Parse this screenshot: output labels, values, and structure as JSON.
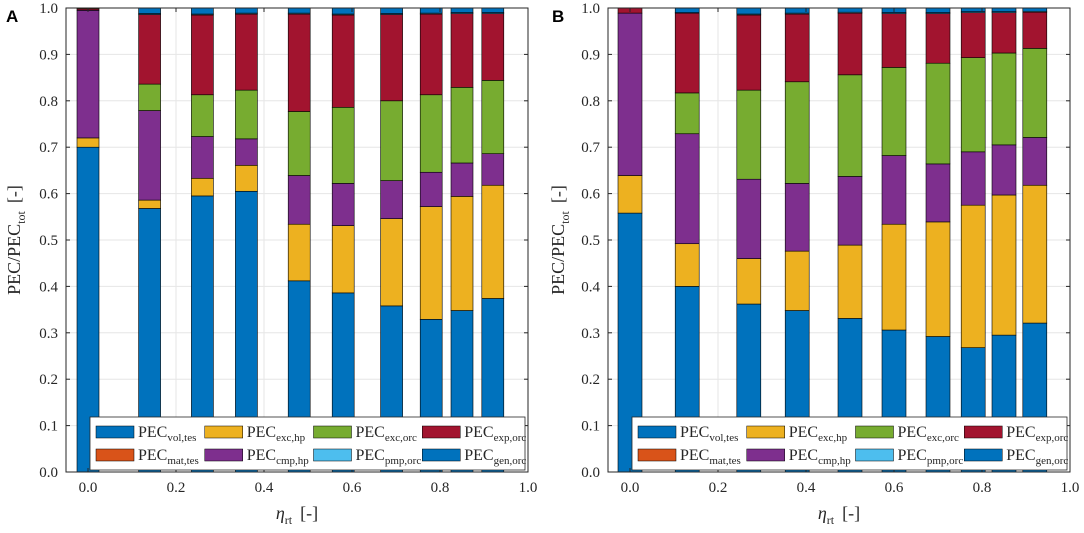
{
  "colors": {
    "vol_tes": "#0072BD",
    "exc_hp": "#EDB120",
    "exc_orc": "#77AC30",
    "exp_orc": "#A2142F",
    "mat_tes": "#D95319",
    "cmp_hp": "#7E2F8E",
    "pmp_orc": "#4DBEEE",
    "gen_orc": "#0072BD"
  },
  "chart_data": [
    {
      "panel": "A",
      "type": "bar",
      "stacked": true,
      "xlabel": {
        "symbol": "η",
        "sub": "rt",
        "unit": "[-]"
      },
      "ylabel": {
        "main": "PEC/PEC",
        "sub": "tot",
        "unit": "[-]"
      },
      "xlim": [
        -0.05,
        1.0
      ],
      "ylim": [
        0,
        1.0
      ],
      "xticks": [
        "0.0",
        "0.2",
        "0.4",
        "0.6",
        "0.8",
        "1.0"
      ],
      "yticks": [
        "0.0",
        "0.1",
        "0.2",
        "0.3",
        "0.4",
        "0.5",
        "0.6",
        "0.7",
        "0.8",
        "0.9",
        "1.0"
      ],
      "x": [
        0.0,
        0.14,
        0.26,
        0.36,
        0.48,
        0.58,
        0.69,
        0.78,
        0.85,
        0.92
      ],
      "series": [
        {
          "key": "vol_tes",
          "values": [
            0.7,
            0.568,
            0.595,
            0.605,
            0.412,
            0.386,
            0.358,
            0.329,
            0.348,
            0.374
          ]
        },
        {
          "key": "exc_hp",
          "values": [
            0.02,
            0.018,
            0.038,
            0.056,
            0.122,
            0.145,
            0.188,
            0.243,
            0.246,
            0.244
          ]
        },
        {
          "key": "cmp_hp",
          "values": [
            0.275,
            0.193,
            0.09,
            0.057,
            0.105,
            0.091,
            0.082,
            0.074,
            0.072,
            0.068
          ]
        },
        {
          "key": "exc_orc",
          "values": [
            0.0,
            0.057,
            0.09,
            0.105,
            0.138,
            0.164,
            0.172,
            0.167,
            0.163,
            0.158
          ]
        },
        {
          "key": "exp_orc",
          "values": [
            0.003,
            0.15,
            0.172,
            0.164,
            0.21,
            0.199,
            0.186,
            0.174,
            0.159,
            0.144
          ]
        },
        {
          "key": "pmp_orc",
          "values": [
            0.0,
            0.002,
            0.002,
            0.002,
            0.002,
            0.002,
            0.002,
            0.002,
            0.002,
            0.002
          ]
        },
        {
          "key": "gen_orc",
          "values": [
            0.0,
            0.012,
            0.013,
            0.011,
            0.011,
            0.013,
            0.012,
            0.011,
            0.01,
            0.01
          ]
        },
        {
          "key": "mat_tes",
          "values": [
            0.002,
            0.0,
            0.0,
            0.0,
            0.0,
            0.0,
            0.0,
            0.0,
            0.0,
            0.0
          ]
        }
      ]
    },
    {
      "panel": "B",
      "type": "bar",
      "stacked": true,
      "xlabel": {
        "symbol": "η",
        "sub": "rt",
        "unit": "[-]"
      },
      "ylabel": {
        "main": "PEC/PEC",
        "sub": "tot",
        "unit": "[-]"
      },
      "xlim": [
        -0.05,
        1.0
      ],
      "ylim": [
        0,
        1.0
      ],
      "xticks": [
        "0.0",
        "0.2",
        "0.4",
        "0.6",
        "0.8",
        "1.0"
      ],
      "yticks": [
        "0.0",
        "0.1",
        "0.2",
        "0.3",
        "0.4",
        "0.5",
        "0.6",
        "0.7",
        "0.8",
        "0.9",
        "1.0"
      ],
      "x": [
        0.0,
        0.13,
        0.27,
        0.38,
        0.5,
        0.6,
        0.7,
        0.78,
        0.85,
        0.92
      ],
      "series": [
        {
          "key": "vol_tes",
          "values": [
            0.558,
            0.4,
            0.362,
            0.348,
            0.331,
            0.306,
            0.292,
            0.268,
            0.295,
            0.321
          ]
        },
        {
          "key": "exc_hp",
          "values": [
            0.081,
            0.092,
            0.098,
            0.128,
            0.158,
            0.228,
            0.247,
            0.307,
            0.302,
            0.297
          ]
        },
        {
          "key": "cmp_hp",
          "values": [
            0.35,
            0.237,
            0.171,
            0.146,
            0.148,
            0.148,
            0.125,
            0.115,
            0.108,
            0.103
          ]
        },
        {
          "key": "exc_orc",
          "values": [
            0.0,
            0.088,
            0.192,
            0.219,
            0.219,
            0.19,
            0.217,
            0.203,
            0.198,
            0.192
          ]
        },
        {
          "key": "exp_orc",
          "values": [
            0.011,
            0.172,
            0.162,
            0.146,
            0.133,
            0.116,
            0.107,
            0.097,
            0.087,
            0.078
          ]
        },
        {
          "key": "pmp_orc",
          "values": [
            0.0,
            0.001,
            0.002,
            0.002,
            0.002,
            0.002,
            0.002,
            0.002,
            0.002,
            0.002
          ]
        },
        {
          "key": "gen_orc",
          "values": [
            0.0,
            0.01,
            0.013,
            0.011,
            0.009,
            0.01,
            0.01,
            0.008,
            0.008,
            0.007
          ]
        },
        {
          "key": "mat_tes",
          "values": [
            0.0,
            0.0,
            0.0,
            0.0,
            0.0,
            0.0,
            0.0,
            0.0,
            0.0,
            0.0
          ]
        }
      ]
    }
  ],
  "legend": [
    [
      {
        "key": "vol_tes",
        "base": "PEC",
        "sub": "vol,tes"
      },
      {
        "key": "exc_hp",
        "base": "PEC",
        "sub": "exc,hp"
      },
      {
        "key": "exc_orc",
        "base": "PEC",
        "sub": "exc,orc"
      },
      {
        "key": "exp_orc",
        "base": "PEC",
        "sub": "exp,orc"
      }
    ],
    [
      {
        "key": "mat_tes",
        "base": "PEC",
        "sub": "mat,tes"
      },
      {
        "key": "cmp_hp",
        "base": "PEC",
        "sub": "cmp,hp"
      },
      {
        "key": "pmp_orc",
        "base": "PEC",
        "sub": "pmp,orc"
      },
      {
        "key": "gen_orc",
        "base": "PEC",
        "sub": "gen,orc"
      }
    ]
  ]
}
